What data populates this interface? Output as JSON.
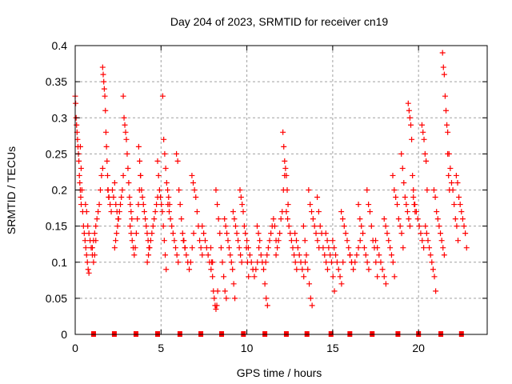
{
  "chart_data": {
    "type": "scatter",
    "title": "Day 204 of 2023, SRMTID for receiver cn19",
    "xlabel": "GPS time / hours",
    "ylabel": "SRMTID / TECUs",
    "xlim": [
      0,
      24
    ],
    "ylim": [
      0,
      0.4
    ],
    "xticks": [
      0,
      5,
      10,
      15,
      20
    ],
    "xtick_labels": [
      "0",
      "5",
      "10",
      "15",
      "20"
    ],
    "yticks": [
      0,
      0.05,
      0.1,
      0.15,
      0.2,
      0.25,
      0.3,
      0.35,
      0.4
    ],
    "ytick_labels": [
      "0",
      "0.05",
      "0.1",
      "0.15",
      "0.2",
      "0.25",
      "0.3",
      "0.35",
      "0.4"
    ],
    "grid": true,
    "legend": "none",
    "marker": "plus",
    "color": "#ff0000",
    "baseline_markers_x": [
      1.07,
      2.28,
      3.54,
      4.8,
      6.1,
      7.32,
      8.53,
      9.8,
      11.05,
      12.3,
      13.5,
      14.9,
      16.0,
      17.3,
      18.8,
      20.0,
      21.3,
      22.5
    ],
    "tracks": [
      {
        "x0": 0.0,
        "x1": 0.35,
        "y": [
          0.33,
          0.32,
          0.3,
          0.29,
          0.28,
          0.27,
          0.26,
          0.25,
          0.24,
          0.22,
          0.21,
          0.2,
          0.19,
          0.18
        ]
      },
      {
        "x0": 0.3,
        "x1": 0.8,
        "y": [
          0.26,
          0.23,
          0.2,
          0.17,
          0.15,
          0.14,
          0.13,
          0.12,
          0.11,
          0.1,
          0.09,
          0.085
        ]
      },
      {
        "x0": 0.6,
        "x1": 1.2,
        "y": [
          0.18,
          0.17,
          0.15,
          0.14,
          0.13,
          0.12,
          0.11,
          0.1,
          0.11,
          0.13
        ]
      },
      {
        "x0": 1.0,
        "x1": 1.6,
        "y": [
          0.12,
          0.13,
          0.14,
          0.15,
          0.16,
          0.17,
          0.18,
          0.2,
          0.22,
          0.23
        ]
      },
      {
        "x0": 1.6,
        "x1": 1.95,
        "y": [
          0.37,
          0.36,
          0.35,
          0.34,
          0.33,
          0.31,
          0.28,
          0.26,
          0.24,
          0.22,
          0.2,
          0.19
        ]
      },
      {
        "x0": 1.9,
        "x1": 2.5,
        "y": [
          0.2,
          0.19,
          0.18,
          0.17,
          0.2,
          0.19,
          0.21,
          0.18,
          0.17,
          0.16
        ]
      },
      {
        "x0": 2.3,
        "x1": 2.8,
        "y": [
          0.12,
          0.13,
          0.14,
          0.15,
          0.16,
          0.17,
          0.18,
          0.19,
          0.2,
          0.22
        ]
      },
      {
        "x0": 2.8,
        "x1": 3.3,
        "y": [
          0.33,
          0.3,
          0.29,
          0.28,
          0.27,
          0.25,
          0.23,
          0.21,
          0.19,
          0.18,
          0.17,
          0.16
        ]
      },
      {
        "x0": 3.2,
        "x1": 3.8,
        "y": [
          0.15,
          0.14,
          0.13,
          0.12,
          0.11,
          0.12,
          0.14,
          0.16,
          0.18,
          0.2,
          0.22
        ]
      },
      {
        "x0": 3.7,
        "x1": 4.3,
        "y": [
          0.26,
          0.24,
          0.22,
          0.2,
          0.19,
          0.18,
          0.17,
          0.16,
          0.15,
          0.14,
          0.13,
          0.12
        ]
      },
      {
        "x0": 4.2,
        "x1": 4.8,
        "y": [
          0.1,
          0.11,
          0.12,
          0.13,
          0.14,
          0.15,
          0.16,
          0.17,
          0.18,
          0.19
        ]
      },
      {
        "x0": 4.8,
        "x1": 5.3,
        "y": [
          0.24,
          0.22,
          0.2,
          0.19,
          0.18,
          0.17,
          0.15,
          0.13,
          0.11,
          0.09
        ]
      },
      {
        "x0": 5.1,
        "x1": 5.5,
        "y": [
          0.33,
          0.27,
          0.25,
          0.23,
          0.21,
          0.2,
          0.19,
          0.18
        ]
      },
      {
        "x0": 5.4,
        "x1": 6.0,
        "y": [
          0.18,
          0.17,
          0.16,
          0.15,
          0.14,
          0.13,
          0.12,
          0.11,
          0.1
        ]
      },
      {
        "x0": 5.9,
        "x1": 6.4,
        "y": [
          0.25,
          0.24,
          0.2,
          0.18,
          0.16,
          0.14,
          0.13,
          0.12
        ]
      },
      {
        "x0": 6.3,
        "x1": 6.9,
        "y": [
          0.13,
          0.12,
          0.11,
          0.1,
          0.09,
          0.1,
          0.12,
          0.14
        ]
      },
      {
        "x0": 6.8,
        "x1": 7.4,
        "y": [
          0.22,
          0.21,
          0.2,
          0.19,
          0.17,
          0.15,
          0.13,
          0.12,
          0.11
        ]
      },
      {
        "x0": 7.4,
        "x1": 8.0,
        "y": [
          0.15,
          0.14,
          0.13,
          0.12,
          0.11,
          0.1,
          0.09,
          0.1
        ]
      },
      {
        "x0": 7.9,
        "x1": 8.3,
        "y": [
          0.12,
          0.1,
          0.08,
          0.06,
          0.05,
          0.04,
          0.035,
          0.04,
          0.06
        ]
      },
      {
        "x0": 8.2,
        "x1": 8.8,
        "y": [
          0.2,
          0.18,
          0.16,
          0.14,
          0.12,
          0.1,
          0.08,
          0.06,
          0.05
        ]
      },
      {
        "x0": 8.7,
        "x1": 9.3,
        "y": [
          0.16,
          0.15,
          0.14,
          0.13,
          0.12,
          0.11,
          0.1,
          0.09,
          0.07,
          0.05
        ]
      },
      {
        "x0": 9.2,
        "x1": 9.7,
        "y": [
          0.17,
          0.16,
          0.15,
          0.14,
          0.13,
          0.12,
          0.11,
          0.1
        ]
      },
      {
        "x0": 9.6,
        "x1": 10.1,
        "y": [
          0.2,
          0.19,
          0.18,
          0.17,
          0.15,
          0.14,
          0.12,
          0.1,
          0.08
        ]
      },
      {
        "x0": 10.0,
        "x1": 10.7,
        "y": [
          0.13,
          0.12,
          0.11,
          0.1,
          0.09,
          0.08,
          0.09,
          0.1,
          0.12
        ]
      },
      {
        "x0": 10.6,
        "x1": 11.2,
        "y": [
          0.15,
          0.14,
          0.13,
          0.11,
          0.1,
          0.09,
          0.07,
          0.05,
          0.04
        ]
      },
      {
        "x0": 11.1,
        "x1": 11.7,
        "y": [
          0.1,
          0.11,
          0.12,
          0.13,
          0.14,
          0.15,
          0.16,
          0.15,
          0.13
        ]
      },
      {
        "x0": 11.7,
        "x1": 12.2,
        "y": [
          0.11,
          0.12,
          0.13,
          0.14,
          0.16,
          0.17,
          0.2,
          0.22
        ]
      },
      {
        "x0": 12.1,
        "x1": 12.4,
        "y": [
          0.28,
          0.26,
          0.24,
          0.23,
          0.22,
          0.2,
          0.18
        ]
      },
      {
        "x0": 12.3,
        "x1": 12.9,
        "y": [
          0.17,
          0.16,
          0.15,
          0.14,
          0.13,
          0.12,
          0.11,
          0.1,
          0.09
        ]
      },
      {
        "x0": 12.8,
        "x1": 13.4,
        "y": [
          0.14,
          0.13,
          0.12,
          0.11,
          0.1,
          0.09,
          0.08,
          0.1
        ]
      },
      {
        "x0": 13.3,
        "x1": 13.8,
        "y": [
          0.15,
          0.13,
          0.11,
          0.09,
          0.07,
          0.05,
          0.04
        ]
      },
      {
        "x0": 13.6,
        "x1": 14.2,
        "y": [
          0.2,
          0.18,
          0.17,
          0.16,
          0.15,
          0.14,
          0.13,
          0.12
        ]
      },
      {
        "x0": 14.1,
        "x1": 14.7,
        "y": [
          0.19,
          0.17,
          0.15,
          0.14,
          0.12,
          0.11,
          0.1,
          0.09
        ]
      },
      {
        "x0": 14.6,
        "x1": 15.1,
        "y": [
          0.14,
          0.13,
          0.12,
          0.11,
          0.1,
          0.08,
          0.06
        ]
      },
      {
        "x0": 15.0,
        "x1": 15.6,
        "y": [
          0.13,
          0.12,
          0.11,
          0.1,
          0.09,
          0.08,
          0.07,
          0.1
        ]
      },
      {
        "x0": 15.5,
        "x1": 16.1,
        "y": [
          0.17,
          0.16,
          0.15,
          0.14,
          0.13,
          0.12,
          0.11,
          0.1
        ]
      },
      {
        "x0": 16.0,
        "x1": 16.6,
        "y": [
          0.11,
          0.1,
          0.09,
          0.1,
          0.11,
          0.12,
          0.13
        ]
      },
      {
        "x0": 16.5,
        "x1": 17.1,
        "y": [
          0.18,
          0.16,
          0.15,
          0.14,
          0.12,
          0.11,
          0.1,
          0.09
        ]
      },
      {
        "x0": 17.0,
        "x1": 17.6,
        "y": [
          0.2,
          0.18,
          0.17,
          0.15,
          0.13,
          0.12,
          0.1,
          0.08
        ]
      },
      {
        "x0": 17.5,
        "x1": 18.1,
        "y": [
          0.13,
          0.12,
          0.11,
          0.1,
          0.09,
          0.08,
          0.07
        ]
      },
      {
        "x0": 18.0,
        "x1": 18.6,
        "y": [
          0.16,
          0.15,
          0.14,
          0.13,
          0.12,
          0.11,
          0.1,
          0.08
        ]
      },
      {
        "x0": 18.5,
        "x1": 19.1,
        "y": [
          0.22,
          0.2,
          0.19,
          0.18,
          0.16,
          0.15,
          0.14,
          0.12
        ]
      },
      {
        "x0": 19.0,
        "x1": 19.5,
        "y": [
          0.25,
          0.23,
          0.21,
          0.19,
          0.18,
          0.17,
          0.16,
          0.15
        ]
      },
      {
        "x0": 19.4,
        "x1": 19.8,
        "y": [
          0.32,
          0.31,
          0.3,
          0.29,
          0.27,
          0.22,
          0.2,
          0.18,
          0.17
        ]
      },
      {
        "x0": 19.7,
        "x1": 20.3,
        "y": [
          0.19,
          0.18,
          0.17,
          0.16,
          0.15,
          0.14,
          0.13,
          0.12
        ]
      },
      {
        "x0": 20.2,
        "x1": 20.5,
        "y": [
          0.29,
          0.28,
          0.27,
          0.25,
          0.24,
          0.2
        ]
      },
      {
        "x0": 20.4,
        "x1": 21.0,
        "y": [
          0.15,
          0.14,
          0.13,
          0.12,
          0.11,
          0.1,
          0.09,
          0.08,
          0.06
        ]
      },
      {
        "x0": 20.9,
        "x1": 21.5,
        "y": [
          0.2,
          0.19,
          0.17,
          0.16,
          0.15,
          0.14,
          0.13,
          0.12,
          0.11
        ]
      },
      {
        "x0": 21.4,
        "x1": 21.8,
        "y": [
          0.39,
          0.37,
          0.36,
          0.33,
          0.31,
          0.29,
          0.25,
          0.22,
          0.2
        ]
      },
      {
        "x0": 21.7,
        "x1": 22.3,
        "y": [
          0.28,
          0.25,
          0.23,
          0.21,
          0.2,
          0.18,
          0.16,
          0.15,
          0.13
        ]
      },
      {
        "x0": 22.2,
        "x1": 22.8,
        "y": [
          0.22,
          0.21,
          0.19,
          0.18,
          0.17,
          0.16,
          0.15,
          0.14,
          0.12
        ]
      }
    ]
  }
}
